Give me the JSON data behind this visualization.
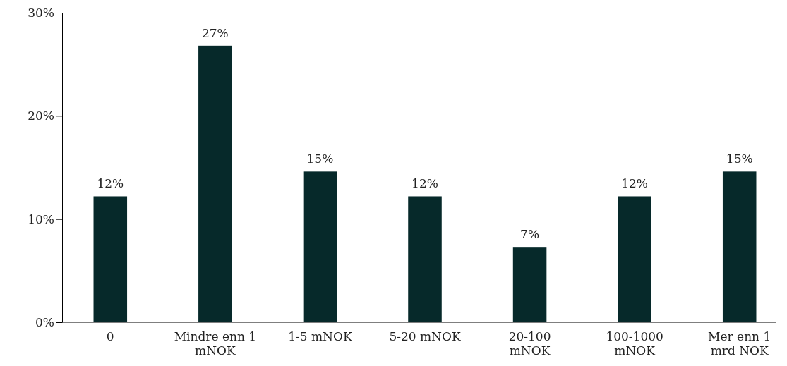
{
  "chart_data": {
    "type": "bar",
    "categories": [
      "0",
      "Mindre enn 1 mNOK",
      "1-5 mNOK",
      "5-20 mNOK",
      "20-100 mNOK",
      "100-1000 mNOK",
      "Mer enn 1 mrd NOK"
    ],
    "values": [
      12.2,
      26.8,
      14.6,
      12.2,
      7.3,
      12.2,
      14.6
    ],
    "value_labels": [
      "12%",
      "27%",
      "15%",
      "12%",
      "7%",
      "12%",
      "15%"
    ],
    "color": "#06292a",
    "ylim": [
      0,
      30
    ],
    "yticks": [
      {
        "value": 0,
        "label": "0%"
      },
      {
        "value": 10,
        "label": "10%"
      },
      {
        "value": 20,
        "label": "20%"
      },
      {
        "value": 30,
        "label": "30%"
      }
    ],
    "grid": false
  }
}
